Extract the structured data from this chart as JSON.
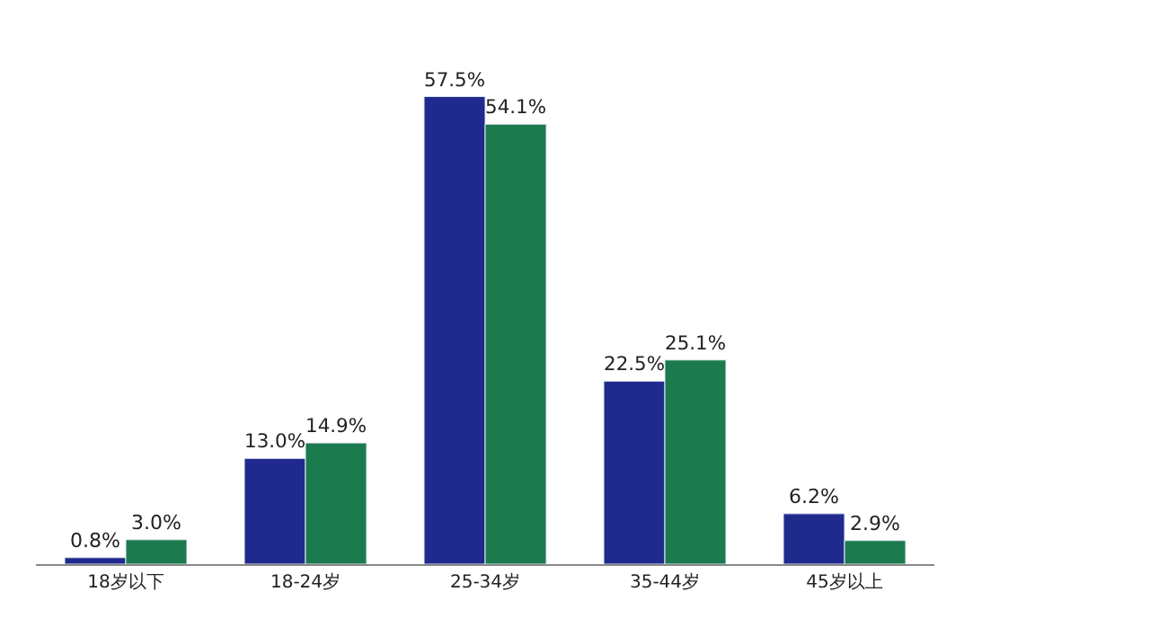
{
  "chart_data": {
    "type": "bar",
    "categories": [
      "18岁以下",
      "18-24岁",
      "25-34岁",
      "35-44岁",
      "45岁以上"
    ],
    "series": [
      {
        "color": "#1f2a8c",
        "values": [
          0.8,
          13.0,
          57.5,
          22.5,
          6.2
        ],
        "value_labels": [
          "0.8%",
          "13.0%",
          "57.5%",
          "22.5%",
          "6.2%"
        ]
      },
      {
        "color": "#1b7a4e",
        "values": [
          3.0,
          14.9,
          54.1,
          25.1,
          2.9
        ],
        "value_labels": [
          "3.0%",
          "14.9%",
          "54.1%",
          "25.1%",
          "2.9%"
        ]
      }
    ]
  }
}
